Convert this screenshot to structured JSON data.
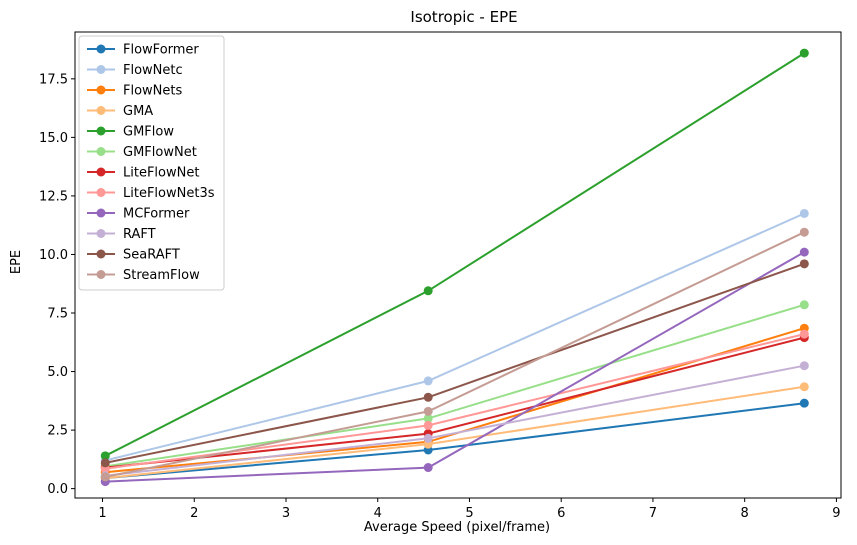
{
  "chart_data": {
    "type": "line",
    "title": "Isotropic - EPE",
    "xlabel": "Average Speed (pixel/frame)",
    "ylabel": "EPE",
    "xlim": [
      0.7,
      9.05
    ],
    "ylim": [
      -0.4,
      19.5
    ],
    "xticks": [
      1,
      2,
      3,
      4,
      5,
      6,
      7,
      8,
      9
    ],
    "xtick_labels": [
      "1",
      "2",
      "3",
      "4",
      "5",
      "6",
      "7",
      "8",
      "9"
    ],
    "yticks": [
      0.0,
      2.5,
      5.0,
      7.5,
      10.0,
      12.5,
      15.0,
      17.5
    ],
    "ytick_labels": [
      "0.0",
      "2.5",
      "5.0",
      "7.5",
      "10.0",
      "12.5",
      "15.0",
      "17.5"
    ],
    "grid": false,
    "legend_position": "top-left",
    "x": [
      1.03,
      4.55,
      8.65
    ],
    "series": [
      {
        "name": "FlowFormer",
        "color": "#1f77b4",
        "values": [
          0.45,
          1.65,
          3.65
        ]
      },
      {
        "name": "FlowNetc",
        "color": "#aec7e8",
        "values": [
          1.2,
          4.6,
          11.75
        ]
      },
      {
        "name": "FlowNets",
        "color": "#ff7f0e",
        "values": [
          0.7,
          2.0,
          6.85
        ]
      },
      {
        "name": "GMA",
        "color": "#ffbb78",
        "values": [
          0.45,
          1.9,
          4.35
        ]
      },
      {
        "name": "GMFlow",
        "color": "#2ca02c",
        "values": [
          1.4,
          8.45,
          18.6
        ]
      },
      {
        "name": "GMFlowNet",
        "color": "#98df8a",
        "values": [
          0.95,
          3.0,
          7.85
        ]
      },
      {
        "name": "LiteFlowNet",
        "color": "#d62728",
        "values": [
          0.9,
          2.35,
          6.45
        ]
      },
      {
        "name": "LiteFlowNet3s",
        "color": "#ff9896",
        "values": [
          0.85,
          2.7,
          6.6
        ]
      },
      {
        "name": "MCFormer",
        "color": "#9467bd",
        "values": [
          0.3,
          0.9,
          10.1
        ]
      },
      {
        "name": "RAFT",
        "color": "#c5b0d5",
        "values": [
          0.55,
          2.15,
          5.25
        ]
      },
      {
        "name": "SeaRAFT",
        "color": "#8c564b",
        "values": [
          1.1,
          3.9,
          9.6
        ]
      },
      {
        "name": "StreamFlow",
        "color": "#c49c94",
        "values": [
          0.5,
          3.3,
          10.95
        ]
      }
    ]
  }
}
